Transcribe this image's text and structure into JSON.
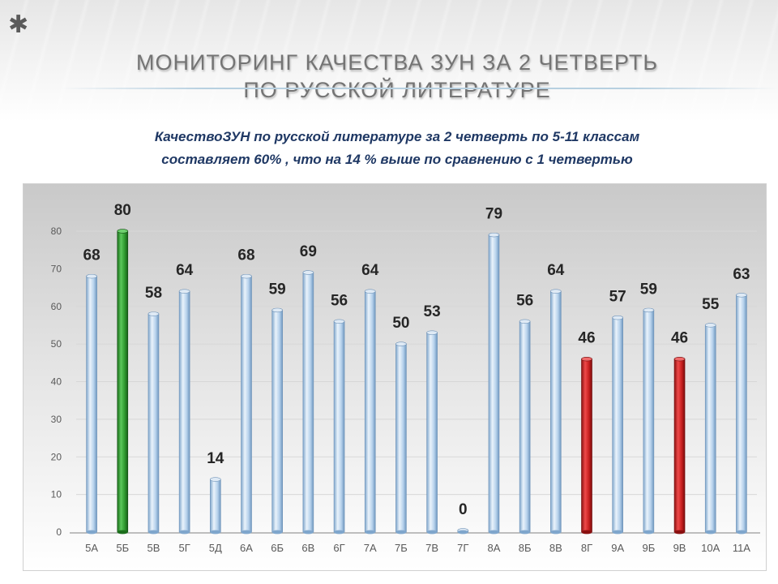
{
  "slide": {
    "title_line1": "МОНИТОРИНГ  КАЧЕСТВА ЗУН ЗА  2  ЧЕТВЕРТЬ",
    "title_line2": "ПО  РУССКОЙ  ЛИТЕРАТУРЕ",
    "subtitle_line1": "КачествоЗУН по русской литературе  за 2 четверть  по 5-11 классам",
    "subtitle_line2": "составляет  60% , что на 14 % выше по сравнению с 1 четвертью"
  },
  "colors": {
    "bar_default": "#a9c8e6",
    "bar_highlight_high": "#2f9a2f",
    "bar_highlight_low": "#c82020",
    "title": "#747474",
    "subtitle": "#1f3864"
  },
  "chart_data": {
    "type": "bar",
    "categories": [
      "5А",
      "5Б",
      "5В",
      "5Г",
      "5Д",
      "6А",
      "6Б",
      "6В",
      "6Г",
      "7А",
      "7Б",
      "7В",
      "7Г",
      "8А",
      "8Б",
      "8В",
      "8Г",
      "9А",
      "9Б",
      "9В",
      "10А",
      "11А"
    ],
    "values": [
      68,
      80,
      58,
      64,
      14,
      68,
      59,
      69,
      56,
      64,
      50,
      53,
      0,
      79,
      56,
      64,
      46,
      57,
      59,
      46,
      55,
      63
    ],
    "data_labels": [
      "68",
      "80",
      "58",
      "64",
      "14",
      "68",
      "59",
      "69",
      "56",
      "64",
      "50",
      "53",
      "0",
      "79",
      "56",
      "64",
      "46",
      "57",
      "59",
      "46",
      "55",
      "63"
    ],
    "bar_colors": [
      "default",
      "high",
      "default",
      "default",
      "default",
      "default",
      "default",
      "default",
      "default",
      "default",
      "default",
      "default",
      "default",
      "default",
      "default",
      "default",
      "low",
      "default",
      "default",
      "low",
      "default",
      "default"
    ],
    "y_ticks": [
      "0",
      "10",
      "20",
      "30",
      "40",
      "50",
      "60",
      "70",
      "80"
    ],
    "ylim": [
      0,
      80
    ],
    "grid": true,
    "legend": "none",
    "title": "",
    "xlabel": "",
    "ylabel": ""
  }
}
